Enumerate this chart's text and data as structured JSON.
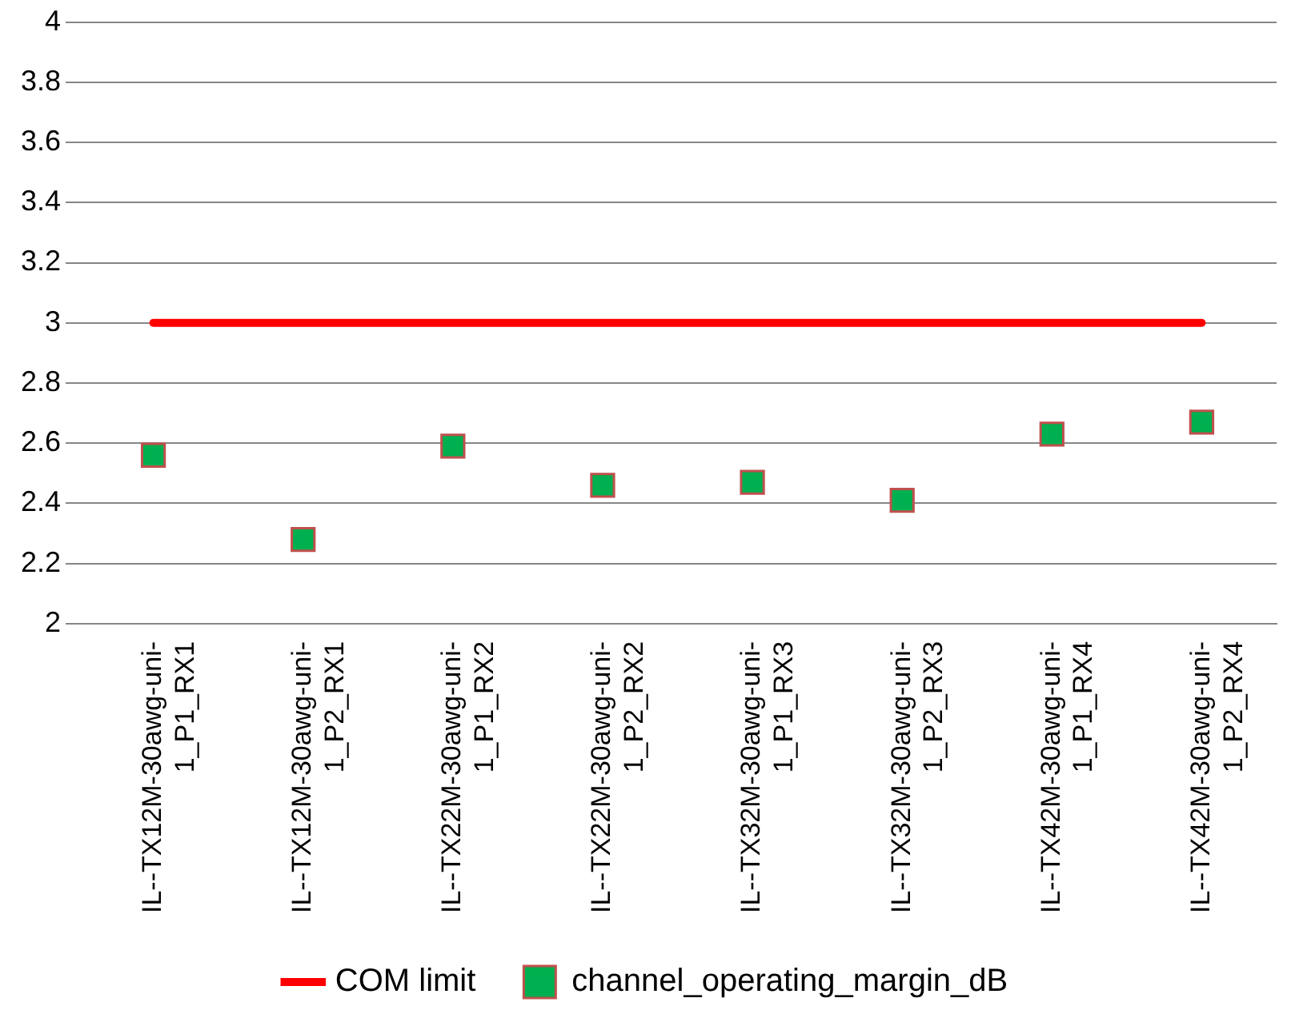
{
  "chart_data": {
    "type": "line",
    "categories": [
      "IL--TX12M-30awg-uni-\n1_P1_RX1",
      "IL--TX12M-30awg-uni-\n1_P2_RX1",
      "IL--TX22M-30awg-uni-\n1_P1_RX2",
      "IL--TX22M-30awg-uni-\n1_P2_RX2",
      "IL--TX32M-30awg-uni-\n1_P1_RX3",
      "IL--TX32M-30awg-uni-\n1_P2_RX3",
      "IL--TX42M-30awg-uni-\n1_P1_RX4",
      "IL--TX42M-30awg-uni-\n1_P2_RX4"
    ],
    "series": [
      {
        "name": "COM limit",
        "color": "#ff0000",
        "marker": "none",
        "values": [
          3,
          3,
          3,
          3,
          3,
          3,
          3,
          3
        ]
      },
      {
        "name": "channel_operating_margin_dB",
        "type": "scatter",
        "color": "#00b050",
        "marker": "square",
        "values": [
          2.56,
          2.28,
          2.59,
          2.46,
          2.47,
          2.41,
          2.63,
          2.67
        ]
      }
    ],
    "ylim": [
      2,
      4
    ],
    "yticks": [
      2,
      2.2,
      2.4,
      2.6,
      2.8,
      3,
      3.2,
      3.4,
      3.6,
      3.8,
      4
    ],
    "grid": "y",
    "legend": "bottom"
  }
}
